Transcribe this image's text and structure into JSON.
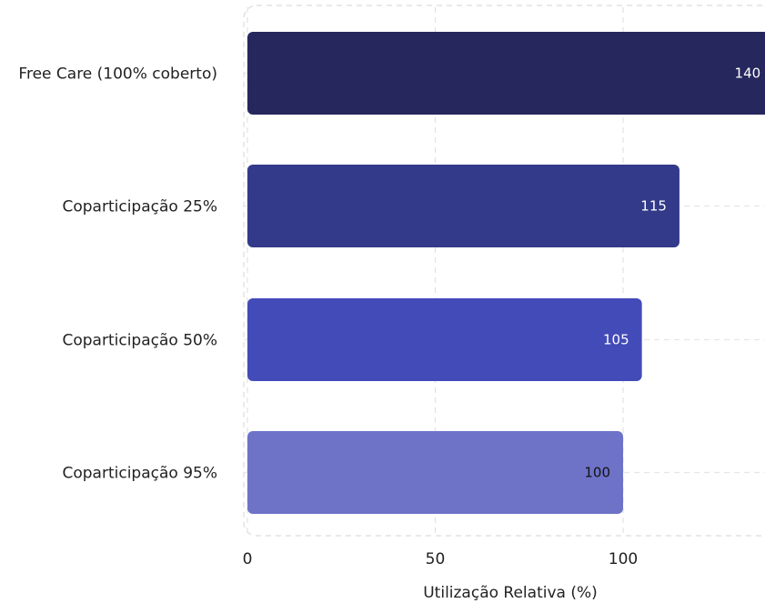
{
  "chart_data": {
    "type": "bar",
    "orientation": "horizontal",
    "title": "",
    "xlabel": "Utilização Relativa (%)",
    "ylabel": "",
    "categories": [
      "Free Care (100% coberto)",
      "Coparticipação 25%",
      "Coparticipação 50%",
      "Coparticipação 95%"
    ],
    "values": [
      140,
      115,
      105,
      100
    ],
    "data_labels": [
      "140",
      "115",
      "105",
      "100"
    ],
    "bar_colors": [
      "#26275d",
      "#333a8a",
      "#434bb8",
      "#6e73c8"
    ],
    "label_colors": [
      "#ffffff",
      "#ffffff",
      "#ffffff",
      "#111111"
    ],
    "xlim": [
      0,
      140
    ],
    "x_ticks": [
      0,
      50,
      100
    ],
    "x_tick_labels": [
      "0",
      "50",
      "100"
    ],
    "grid": "vertical dashed",
    "legend": "none"
  }
}
